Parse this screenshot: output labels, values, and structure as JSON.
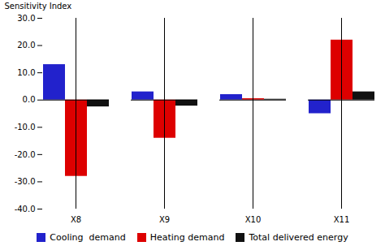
{
  "chart_data": {
    "type": "bar",
    "categories": [
      "X8",
      "X9",
      "X10",
      "X11"
    ],
    "series": [
      {
        "name": "Cooling  demand",
        "color": "#2222cc",
        "values": [
          13.0,
          3.0,
          2.0,
          -5.0
        ]
      },
      {
        "name": "Heating demand",
        "color": "#dd0000",
        "values": [
          -28.0,
          -14.0,
          0.5,
          22.0
        ]
      },
      {
        "name": "Total delivered energy",
        "color": "#111111",
        "values": [
          -2.5,
          -2.2,
          0.3,
          3.0
        ]
      }
    ],
    "ylabel": "Sensitivity Index",
    "ylim": [
      -40.0,
      30.0
    ],
    "yticks": [
      {
        "value": -40,
        "label": "-40.0"
      },
      {
        "value": -30,
        "label": "-30.0"
      },
      {
        "value": -20,
        "label": "-20.0"
      },
      {
        "value": -10,
        "label": "-10.0"
      },
      {
        "value": 0,
        "label": "0.0"
      },
      {
        "value": 10,
        "label": "10.0"
      },
      {
        "value": 20,
        "label": "20.0"
      },
      {
        "value": 30,
        "label": "30.0"
      }
    ],
    "grid": false,
    "legend": "bottom"
  }
}
